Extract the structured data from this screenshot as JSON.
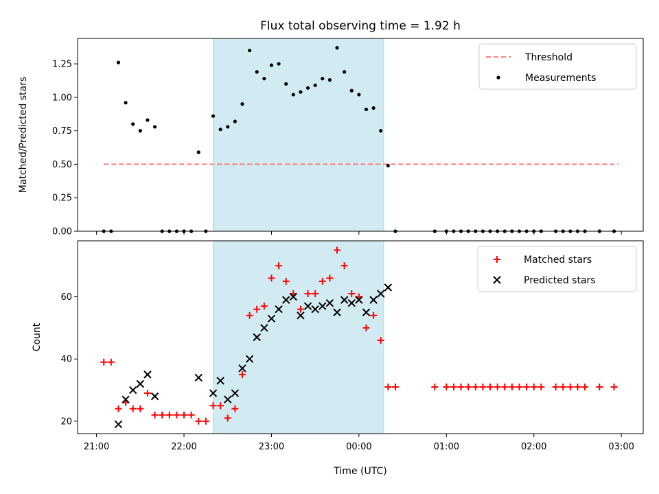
{
  "chart_data": [
    {
      "type": "scatter",
      "title": "Flux total observing time = 1.92 h",
      "xlabel": "",
      "ylabel": "Matched/Predicted stars",
      "xlim": [
        "20:47",
        "03:15"
      ],
      "ylim": [
        0,
        1.44
      ],
      "yticks": [
        "0.00",
        "0.25",
        "0.50",
        "0.75",
        "1.00",
        "1.25"
      ],
      "x_tick_labels_shown": false,
      "highlight_span": {
        "from": "22:20",
        "to": "00:17",
        "color": "#add8e6"
      },
      "legend": {
        "position": "top-right",
        "entries": [
          "Threshold",
          "Measurements"
        ]
      },
      "series": [
        {
          "name": "Threshold",
          "kind": "dashed-line",
          "color": "#ff7f7f",
          "x": [
            "21:05",
            "02:58"
          ],
          "y": [
            0.5,
            0.5
          ]
        },
        {
          "name": "Measurements",
          "kind": "dot",
          "color": "#000000",
          "x": [
            "21:05",
            "21:10",
            "21:15",
            "21:20",
            "21:25",
            "21:30",
            "21:35",
            "21:40",
            "21:45",
            "21:50",
            "21:55",
            "22:00",
            "22:05",
            "22:10",
            "22:15",
            "22:20",
            "22:25",
            "22:30",
            "22:35",
            "22:40",
            "22:45",
            "22:50",
            "22:55",
            "23:00",
            "23:05",
            "23:10",
            "23:15",
            "23:20",
            "23:25",
            "23:30",
            "23:35",
            "23:40",
            "23:45",
            "23:50",
            "23:55",
            "00:00",
            "00:05",
            "00:10",
            "00:15",
            "00:20",
            "00:25",
            "00:52",
            "01:00",
            "01:05",
            "01:10",
            "01:15",
            "01:20",
            "01:25",
            "01:30",
            "01:35",
            "01:40",
            "01:45",
            "01:50",
            "01:55",
            "02:00",
            "02:05",
            "02:15",
            "02:20",
            "02:25",
            "02:30",
            "02:35",
            "02:45",
            "02:55"
          ],
          "y": [
            0,
            0,
            1.26,
            0.96,
            0.8,
            0.75,
            0.83,
            0.78,
            0,
            0,
            0,
            0,
            0,
            0.59,
            0,
            0.86,
            0.76,
            0.78,
            0.82,
            0.95,
            1.35,
            1.19,
            1.14,
            1.24,
            1.25,
            1.1,
            1.02,
            1.04,
            1.07,
            1.09,
            1.14,
            1.13,
            1.37,
            1.19,
            1.05,
            1.02,
            0.91,
            0.92,
            0.75,
            0.49,
            0,
            0,
            0,
            0,
            0,
            0,
            0,
            0,
            0,
            0,
            0,
            0,
            0,
            0,
            0,
            0,
            0,
            0,
            0,
            0,
            0,
            0,
            0
          ]
        }
      ]
    },
    {
      "type": "scatter",
      "title": "",
      "xlabel": "Time (UTC)",
      "ylabel": "Count",
      "xlim": [
        "20:47",
        "03:15"
      ],
      "ylim": [
        16,
        78
      ],
      "yticks": [
        "20",
        "40",
        "60"
      ],
      "xticks": [
        "21:00",
        "22:00",
        "23:00",
        "00:00",
        "01:00",
        "02:00",
        "03:00"
      ],
      "highlight_span": {
        "from": "22:20",
        "to": "00:17",
        "color": "#add8e6"
      },
      "legend": {
        "position": "top-right",
        "entries": [
          "Matched stars",
          "Predicted stars"
        ]
      },
      "series": [
        {
          "name": "Matched stars",
          "kind": "plus",
          "color": "#ff0000",
          "x": [
            "21:05",
            "21:10",
            "21:15",
            "21:20",
            "21:25",
            "21:30",
            "21:35",
            "21:40",
            "21:45",
            "21:50",
            "21:55",
            "22:00",
            "22:05",
            "22:10",
            "22:15",
            "22:20",
            "22:25",
            "22:30",
            "22:35",
            "22:40",
            "22:45",
            "22:50",
            "22:55",
            "23:00",
            "23:05",
            "23:10",
            "23:15",
            "23:20",
            "23:25",
            "23:30",
            "23:35",
            "23:40",
            "23:45",
            "23:50",
            "23:55",
            "00:00",
            "00:05",
            "00:10",
            "00:15",
            "00:20",
            "00:25",
            "00:52",
            "01:00",
            "01:05",
            "01:10",
            "01:15",
            "01:20",
            "01:25",
            "01:30",
            "01:35",
            "01:40",
            "01:45",
            "01:50",
            "01:55",
            "02:00",
            "02:05",
            "02:15",
            "02:20",
            "02:25",
            "02:30",
            "02:35",
            "02:45",
            "02:55"
          ],
          "y": [
            39,
            39,
            24,
            26,
            24,
            24,
            29,
            22,
            22,
            22,
            22,
            22,
            22,
            20,
            20,
            25,
            25,
            21,
            24,
            35,
            54,
            56,
            57,
            66,
            70,
            65,
            61,
            56,
            61,
            61,
            65,
            66,
            75,
            70,
            61,
            60,
            50,
            54,
            46,
            31,
            31,
            31,
            31,
            31,
            31,
            31,
            31,
            31,
            31,
            31,
            31,
            31,
            31,
            31,
            31,
            31,
            31,
            31,
            31,
            31,
            31,
            31,
            31
          ]
        },
        {
          "name": "Predicted stars",
          "kind": "x",
          "color": "#000000",
          "x": [
            "21:15",
            "21:20",
            "21:25",
            "21:30",
            "21:35",
            "21:40",
            "22:10",
            "22:20",
            "22:25",
            "22:30",
            "22:35",
            "22:40",
            "22:45",
            "22:50",
            "22:55",
            "23:00",
            "23:05",
            "23:10",
            "23:15",
            "23:20",
            "23:25",
            "23:30",
            "23:35",
            "23:40",
            "23:45",
            "23:50",
            "23:55",
            "00:00",
            "00:05",
            "00:10",
            "00:15",
            "00:20"
          ],
          "y": [
            19,
            27,
            30,
            32,
            35,
            28,
            34,
            29,
            33,
            27,
            29,
            37,
            40,
            47,
            50,
            53,
            56,
            59,
            60,
            54,
            57,
            56,
            57,
            58,
            55,
            59,
            58,
            59,
            55,
            59,
            61,
            63
          ]
        }
      ]
    }
  ]
}
